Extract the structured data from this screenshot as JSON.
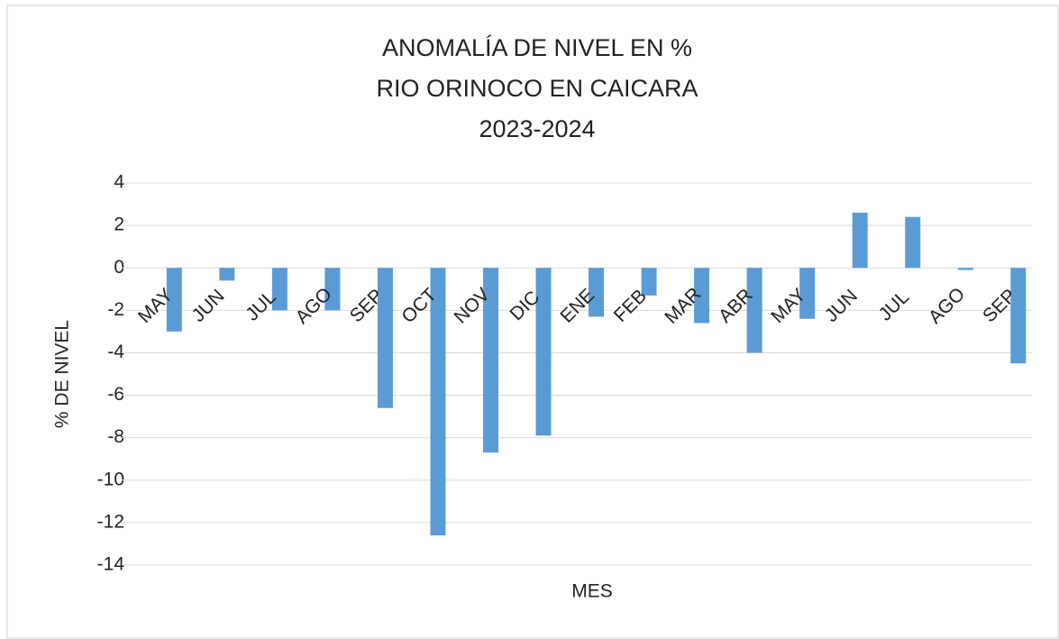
{
  "chart_data": {
    "type": "bar",
    "title": [
      "ANOMALÍA DE NIVEL EN %",
      "RIO ORINOCO EN CAICARA",
      "2023-2024"
    ],
    "x_label": "MES",
    "y_label": "% DE NIVEL",
    "categories": [
      "MAY",
      "JUN",
      "JUL",
      "AGO",
      "SEP",
      "OCT",
      "NOV",
      "DIC",
      "ENE",
      "FEB",
      "MAR",
      "ABR",
      "MAY",
      "JUN",
      "JUL",
      "AGO",
      "SEP"
    ],
    "values": [
      -3.0,
      -0.6,
      -2.0,
      -2.0,
      -6.6,
      -12.6,
      -8.7,
      -7.9,
      -2.3,
      -1.3,
      -2.6,
      -4.0,
      -2.4,
      2.6,
      2.4,
      -0.1,
      -4.5
    ],
    "color": "#5b9bd5",
    "ylim": [
      -14,
      4
    ],
    "yticks": [
      -14,
      -12,
      -10,
      -8,
      -6,
      -4,
      -2,
      0,
      2,
      4
    ],
    "grid": true
  }
}
